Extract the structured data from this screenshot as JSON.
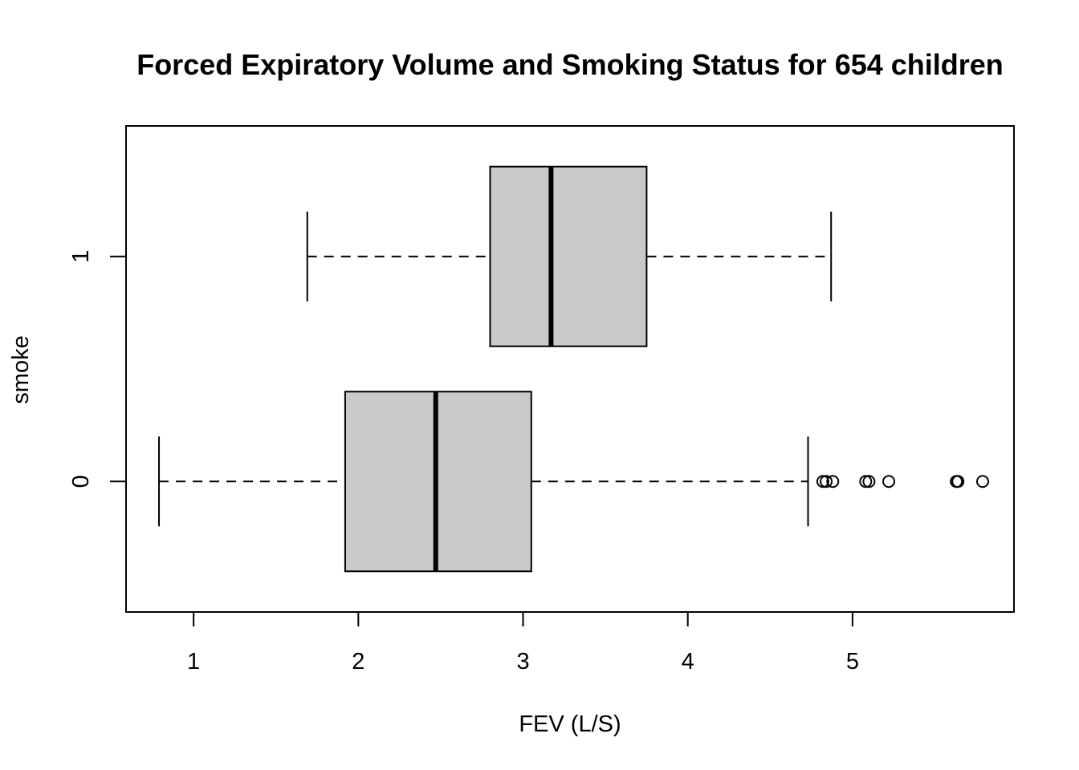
{
  "chart_data": {
    "type": "boxplot",
    "orientation": "horizontal",
    "title": "Forced Expiratory Volume and Smoking Status for 654 children",
    "xlabel": "FEV (L/S)",
    "ylabel": "smoke",
    "xlim": [
      0.59,
      5.98
    ],
    "x_ticks": [
      "1",
      "2",
      "3",
      "4",
      "5"
    ],
    "x_tick_values": [
      1,
      2,
      3,
      4,
      5
    ],
    "categories": [
      "0",
      "1"
    ],
    "boxes": [
      {
        "category": "0",
        "whisker_low": 0.79,
        "q1": 1.92,
        "median": 2.47,
        "q3": 3.05,
        "whisker_high": 4.73,
        "outliers": [
          4.82,
          4.84,
          4.88,
          5.08,
          5.1,
          5.22,
          5.63,
          5.64,
          5.79
        ]
      },
      {
        "category": "1",
        "whisker_low": 1.69,
        "q1": 2.8,
        "median": 3.17,
        "q3": 3.75,
        "whisker_high": 4.87,
        "outliers": []
      }
    ],
    "box_fill": "#c9c9c9",
    "grid": false,
    "legend": "none"
  }
}
